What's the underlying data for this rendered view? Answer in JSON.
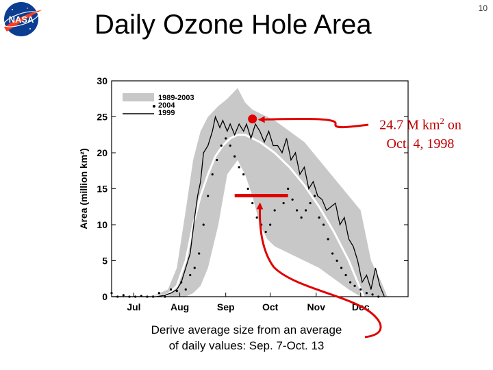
{
  "slide": {
    "title": "Daily Ozone Hole Area",
    "page_number": "10",
    "logo_text": "NASA"
  },
  "annotation": {
    "value": "24.7 M km",
    "superscript": "2",
    "suffix": " on",
    "date": "Oct. 4, 1998"
  },
  "caption": {
    "line1": "Derive average size from an average",
    "line2": "of daily values: Sep. 7-Oct. 13"
  },
  "colors": {
    "envelope": "#c8c8c8",
    "max_point": "#e00000",
    "arrow": "#e00000",
    "mean_line": "#ffffff",
    "series": "#000000",
    "text_red": "#c00000"
  },
  "chart_data": {
    "type": "line",
    "ylabel": "Area (million km²)",
    "ylim": [
      0,
      30
    ],
    "yticks": [
      "0",
      "5",
      "10",
      "15",
      "20",
      "25",
      "30"
    ],
    "xlim": [
      0,
      200
    ],
    "x_categories": [
      "Jul",
      "Aug",
      "Sep",
      "Oct",
      "Nov",
      "Dec"
    ],
    "x_category_positions": [
      15,
      46,
      77,
      107,
      138,
      168
    ],
    "legend": {
      "position": "top-left",
      "entries": [
        "1989-2003",
        "2004",
        "1999"
      ]
    },
    "envelope_1989_2003": {
      "x": [
        0,
        20,
        30,
        38,
        44,
        50,
        55,
        60,
        65,
        72,
        78,
        85,
        90,
        95,
        100,
        105,
        110,
        120,
        130,
        140,
        150,
        160,
        168,
        175,
        182,
        186
      ],
      "upper": [
        0,
        0,
        0.3,
        1,
        4,
        12,
        19,
        23,
        25,
        26.5,
        27.5,
        29,
        27,
        26,
        25.5,
        25,
        24.5,
        23,
        21.5,
        19,
        16.5,
        14,
        12,
        5,
        2,
        0
      ],
      "lower": [
        0,
        0,
        0,
        0,
        0,
        0,
        0.5,
        1.5,
        4,
        10,
        17,
        19,
        17,
        14,
        10,
        8,
        7,
        6,
        5,
        4,
        2.5,
        1,
        0,
        0,
        0,
        0
      ]
    },
    "series": [
      {
        "name": "1989-2003",
        "x": [
          0,
          30,
          38,
          44,
          50,
          55,
          60,
          65,
          70,
          75,
          80,
          85,
          90,
          95,
          100,
          110,
          120,
          130,
          140,
          150,
          160,
          166,
          170
        ],
        "values": [
          0,
          0,
          0.3,
          1.5,
          5,
          10,
          14,
          17,
          19.5,
          21,
          22,
          22.5,
          22.5,
          22,
          21.5,
          20,
          18,
          15.5,
          12.5,
          9,
          5,
          2,
          0
        ]
      },
      {
        "name": "2004",
        "x": [
          0,
          4,
          8,
          12,
          16,
          20,
          24,
          28,
          32,
          36,
          40,
          44,
          47,
          50,
          53,
          56,
          59,
          62,
          65,
          68,
          71,
          74,
          77,
          80,
          83,
          86,
          89,
          92,
          95,
          98,
          101,
          104,
          107,
          110,
          113,
          116,
          119,
          122,
          125,
          128,
          131,
          134,
          137,
          140,
          143,
          146,
          149,
          152,
          155,
          158,
          161,
          164,
          168,
          172,
          176,
          180
        ],
        "values": [
          0.5,
          0,
          0.2,
          0,
          0,
          0.1,
          0,
          0,
          0.5,
          0,
          1,
          0.8,
          2,
          1,
          3,
          4,
          6,
          10,
          14,
          17,
          19,
          21,
          22,
          21,
          19.5,
          18,
          17,
          15,
          13,
          11,
          10,
          9,
          10,
          12,
          14,
          13,
          15,
          13.5,
          12,
          11,
          12,
          13,
          14,
          11,
          10,
          8,
          6,
          5,
          4,
          3,
          2,
          1.5,
          1,
          0.5,
          0.3,
          0
        ]
      },
      {
        "name": "1999",
        "x": [
          0,
          20,
          30,
          36,
          40,
          44,
          47,
          50,
          53,
          56,
          58,
          60,
          62,
          65,
          68,
          70,
          73,
          75,
          78,
          80,
          83,
          86,
          89,
          91,
          94,
          97,
          100,
          103,
          106,
          109,
          112,
          115,
          118,
          121,
          124,
          127,
          130,
          133,
          136,
          139,
          142,
          145,
          148,
          151,
          154,
          157,
          160,
          163,
          166,
          169,
          172,
          175,
          178,
          181,
          184
        ],
        "values": [
          0,
          0,
          0,
          0.2,
          0.5,
          1,
          2,
          4,
          6,
          11,
          14,
          16,
          20,
          21,
          23,
          25,
          23.5,
          24.5,
          23,
          24,
          22.5,
          24,
          23,
          24,
          22,
          24,
          23,
          21.5,
          23,
          21,
          21,
          20,
          22,
          19,
          20,
          17,
          18,
          15,
          16,
          14,
          13.5,
          12,
          12.5,
          13,
          10,
          11,
          8,
          7,
          5,
          2,
          3,
          1,
          4,
          1.5,
          0
        ]
      }
    ],
    "max_point": {
      "x": 95,
      "y": 24.7
    },
    "average_bar": {
      "x_start": 83,
      "x_end": 119,
      "y": 13
    }
  }
}
